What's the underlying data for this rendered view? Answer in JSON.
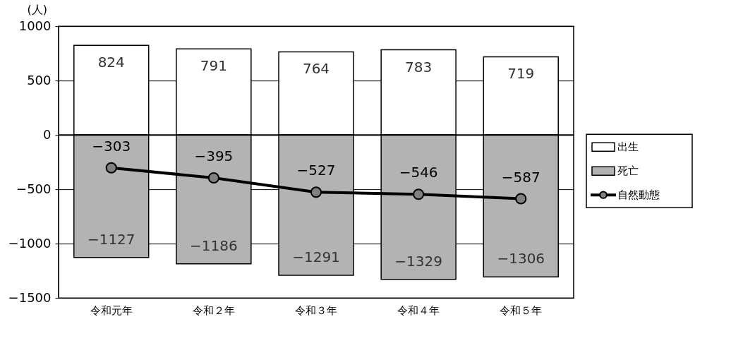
{
  "chart_data": {
    "type": "bar",
    "ylabel": "(人)",
    "categories": [
      "令和元年",
      "令和２年",
      "令和３年",
      "令和４年",
      "令和５年"
    ],
    "stacked": true,
    "series": [
      {
        "name": "出生",
        "color": "#ffffff",
        "values": [
          824,
          791,
          764,
          783,
          719
        ]
      },
      {
        "name": "死亡",
        "color": "#b3b3b3",
        "values": [
          -1127,
          -1186,
          -1291,
          -1329,
          -1306
        ]
      },
      {
        "name": "自然動態",
        "type": "line",
        "color": "#000000",
        "values": [
          -303,
          -395,
          -527,
          -546,
          -587
        ]
      }
    ],
    "ylim": [
      -1500,
      1000
    ],
    "yticks": [
      -1500,
      -1000,
      -500,
      0,
      500,
      1000
    ],
    "grid": "y",
    "legend": "right",
    "marker": "circle",
    "line_style": "solid",
    "data_labels": true
  }
}
